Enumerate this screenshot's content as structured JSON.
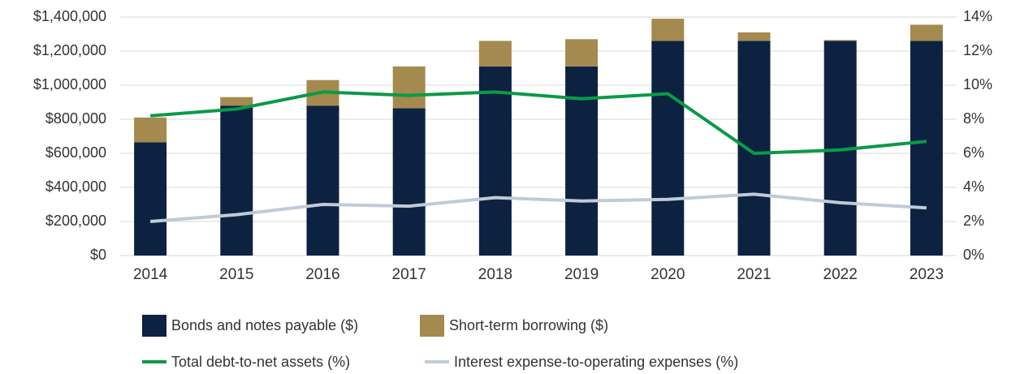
{
  "chart_data": {
    "type": "bar",
    "categories": [
      "2014",
      "2015",
      "2016",
      "2017",
      "2018",
      "2019",
      "2020",
      "2021",
      "2022",
      "2023"
    ],
    "series": [
      {
        "name": "Bonds and notes payable ($)",
        "type": "bar",
        "color": "#0d2240",
        "values": [
          665000,
          880000,
          880000,
          865000,
          1110000,
          1110000,
          1260000,
          1260000,
          1260000,
          1260000
        ]
      },
      {
        "name": "Short-term borrowing ($)",
        "type": "bar",
        "color": "#a48a4e",
        "values": [
          145000,
          50000,
          150000,
          245000,
          150000,
          160000,
          130000,
          50000,
          5000,
          95000
        ]
      },
      {
        "name": "Total debt-to-net assets (%)",
        "type": "line",
        "axis": "y2",
        "color": "#0a9a47",
        "values": [
          8.2,
          8.6,
          9.6,
          9.4,
          9.6,
          9.2,
          9.5,
          6.0,
          6.2,
          6.7
        ]
      },
      {
        "name": "Interest expense-to-operating expenses (%)",
        "type": "line",
        "axis": "y2",
        "color": "#bfcbd8",
        "values": [
          2.0,
          2.4,
          3.0,
          2.9,
          3.4,
          3.2,
          3.3,
          3.6,
          3.1,
          2.8
        ]
      }
    ],
    "stacked": true,
    "ylim": [
      0,
      1400000
    ],
    "yticks": [
      {
        "value": 0,
        "label": "$0"
      },
      {
        "value": 200000,
        "label": "$200,000"
      },
      {
        "value": 400000,
        "label": "$400,000"
      },
      {
        "value": 600000,
        "label": "$600,000"
      },
      {
        "value": 800000,
        "label": "$800,000"
      },
      {
        "value": 1000000,
        "label": "$1,000,000"
      },
      {
        "value": 1200000,
        "label": "$1,200,000"
      },
      {
        "value": 1400000,
        "label": "$1,400,000"
      }
    ],
    "y2lim": [
      0,
      14
    ],
    "y2ticks": [
      {
        "value": 0,
        "label": "0%"
      },
      {
        "value": 2,
        "label": "2%"
      },
      {
        "value": 4,
        "label": "4%"
      },
      {
        "value": 6,
        "label": "6%"
      },
      {
        "value": 8,
        "label": "8%"
      },
      {
        "value": 10,
        "label": "10%"
      },
      {
        "value": 12,
        "label": "12%"
      },
      {
        "value": 14,
        "label": "14%"
      }
    ],
    "grid": true,
    "legend": "bottom"
  }
}
